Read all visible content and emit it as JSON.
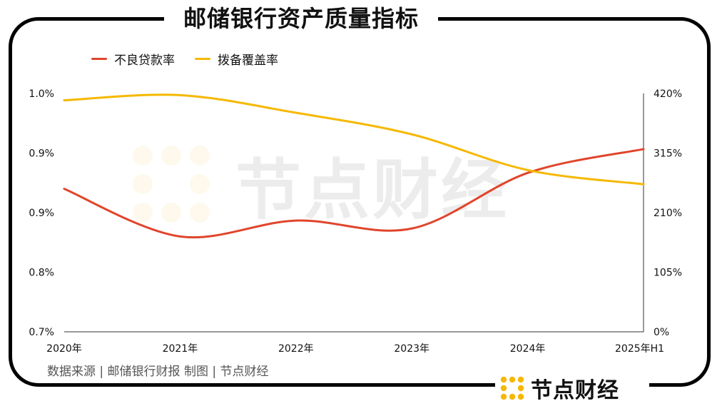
{
  "title": "邮储银行资产质量指标",
  "source_note": "数据来源 | 邮储银行财报  制图 | 节点财经",
  "brand": {
    "name": "节点财经",
    "logo_color": "#f5b800"
  },
  "watermark": {
    "text": "节点财经",
    "logo_color": "#f5b800"
  },
  "colors": {
    "npl": "#e0452c",
    "coverage": "#f5b800"
  },
  "chart_data": {
    "type": "line",
    "title": "邮储银行资产质量指标",
    "categories": [
      "2020年",
      "2021年",
      "2022年",
      "2023年",
      "2024年",
      "2025年H1"
    ],
    "series": [
      {
        "name": "不良贷款率",
        "axis": "left",
        "color": "#e0452c",
        "values": [
          0.88,
          0.82,
          0.84,
          0.83,
          0.9,
          0.93
        ]
      },
      {
        "name": "拨备覆盖率",
        "axis": "right",
        "color": "#f5b800",
        "values": [
          408,
          417,
          386,
          348,
          285,
          260
        ]
      }
    ],
    "y_left": {
      "ticks": [
        "1.0%",
        "0.9%",
        "0.9%",
        "0.8%",
        "0.7%"
      ],
      "range": [
        0.7,
        1.0
      ]
    },
    "y_right": {
      "ticks": [
        "420%",
        "315%",
        "210%",
        "105%",
        "0%"
      ],
      "range": [
        0,
        420
      ]
    },
    "legend_position": "top-left",
    "grid": false
  }
}
